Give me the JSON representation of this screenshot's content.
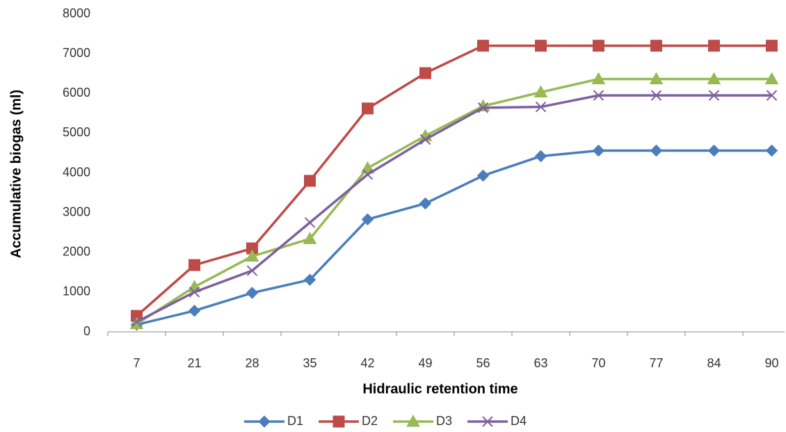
{
  "chart_data": {
    "type": "line",
    "x_label": "Hidraulic retention time",
    "y_label": "Accumulative biogas (ml)",
    "categories": [
      "7",
      "21",
      "28",
      "35",
      "42",
      "49",
      "56",
      "63",
      "70",
      "77",
      "84",
      "90"
    ],
    "series": [
      {
        "name": "D1",
        "color": "#4a7ebb",
        "marker": "diamond",
        "values": [
          180,
          530,
          980,
          1310,
          2830,
          3230,
          3930,
          4420,
          4560,
          4560,
          4560,
          4560
        ]
      },
      {
        "name": "D2",
        "color": "#be4b48",
        "marker": "square",
        "values": [
          400,
          1680,
          2100,
          3800,
          5620,
          6510,
          7200,
          7200,
          7200,
          7200,
          7200,
          7200
        ]
      },
      {
        "name": "D3",
        "color": "#98b954",
        "marker": "triangle",
        "values": [
          200,
          1130,
          1900,
          2340,
          4120,
          4930,
          5680,
          6030,
          6360,
          6360,
          6360,
          6360
        ]
      },
      {
        "name": "D4",
        "color": "#7d60a0",
        "marker": "x",
        "values": [
          250,
          1000,
          1540,
          2750,
          3960,
          4840,
          5640,
          5660,
          5950,
          5950,
          5950,
          5950
        ]
      }
    ],
    "ylim": [
      0,
      8000
    ],
    "yticks": [
      0,
      1000,
      2000,
      3000,
      4000,
      5000,
      6000,
      7000,
      8000
    ],
    "grid": false,
    "legend": "bottom"
  }
}
